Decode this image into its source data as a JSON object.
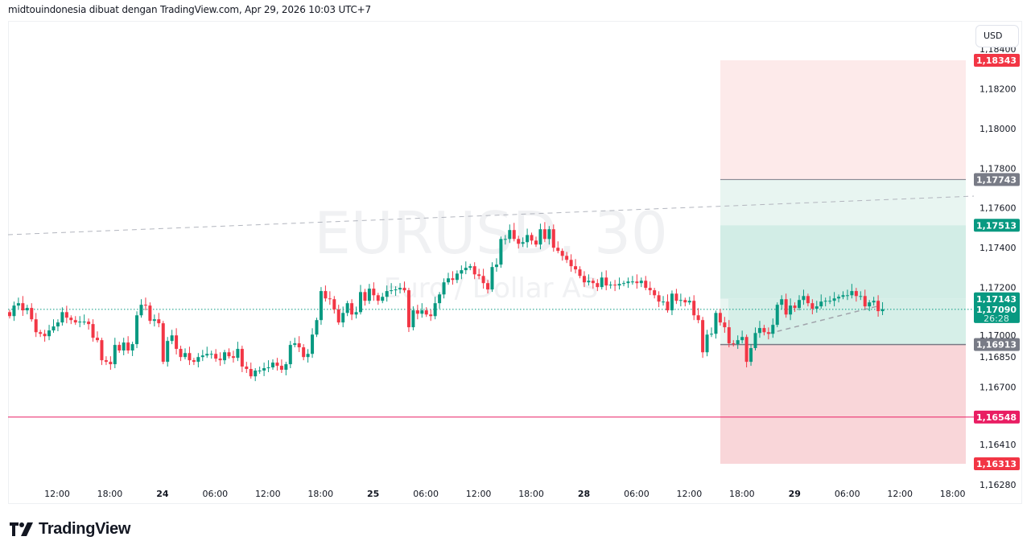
{
  "header": {
    "text": "midtouindonesia dibuat dengan TradingView.com, Apr 29, 2026 10:03 UTC+7"
  },
  "watermark": {
    "symbol": "EURUSD, 30",
    "description": "Euro / Dollar AS"
  },
  "currency_button": "USD",
  "footer": {
    "logo_text": "TradingView"
  },
  "colors": {
    "up": "#089981",
    "down": "#f23645",
    "stop_badge": "#f23645",
    "neutral_badge": "#787b86",
    "horizontal_line": "#e91e63",
    "trendline": "#b2b5be"
  },
  "chart_data": {
    "type": "candlestick",
    "symbol": "EURUSD",
    "interval": "30",
    "x_tick_labels": [
      "12:00",
      "18:00",
      "24",
      "06:00",
      "12:00",
      "18:00",
      "25",
      "06:00",
      "12:00",
      "18:00",
      "28",
      "06:00",
      "12:00",
      "18:00",
      "29",
      "06:00",
      "12:00",
      "18:00"
    ],
    "y_tick_labels": [
      "1,18400",
      "1,18200",
      "1,18000",
      "1,17800",
      "1,17600",
      "1,17400",
      "1,17200",
      "1,17000",
      "1,16850",
      "1,16700",
      "1,16410",
      "1,16280"
    ],
    "y_ticks": [
      1.184,
      1.182,
      1.18,
      1.178,
      1.176,
      1.174,
      1.172,
      1.17,
      1.1685,
      1.167,
      1.1641,
      1.1628
    ],
    "ylim": [
      1.1626,
      1.1846
    ],
    "grid": false,
    "closes": [
      1.17056,
      1.17109,
      1.17121,
      1.17085,
      1.17097,
      1.1704,
      1.16975,
      1.16967,
      1.16955,
      1.16984,
      1.17004,
      1.17024,
      1.17076,
      1.17048,
      1.17036,
      1.17024,
      1.17028,
      1.17028,
      1.17016,
      1.16947,
      1.16935,
      1.16834,
      1.16826,
      1.16814,
      1.16911,
      1.16883,
      1.16923,
      1.16883,
      1.16915,
      1.1706,
      1.17113,
      1.17109,
      1.17032,
      1.1704,
      1.1702,
      1.16826,
      1.16931,
      1.16959,
      1.16891,
      1.1685,
      1.1687,
      1.16834,
      1.16826,
      1.1685,
      1.16858,
      1.16866,
      1.16866,
      1.16842,
      1.16834,
      1.16874,
      1.16854,
      1.16846,
      1.16891,
      1.16802,
      1.1679,
      1.16753,
      1.16782,
      1.16782,
      1.16794,
      1.16798,
      1.16822,
      1.16806,
      1.16786,
      1.16814,
      1.16911,
      1.16919,
      1.16899,
      1.1685,
      1.16866,
      1.16963,
      1.17036,
      1.17182,
      1.17145,
      1.17141,
      1.17089,
      1.17024,
      1.17072,
      1.17121,
      1.17064,
      1.17076,
      1.17177,
      1.17133,
      1.17194,
      1.17161,
      1.17133,
      1.17153,
      1.17182,
      1.17186,
      1.1719,
      1.17198,
      1.17186,
      1.17,
      1.17085,
      1.17068,
      1.17085,
      1.17064,
      1.17056,
      1.17121,
      1.17165,
      1.17226,
      1.17246,
      1.17238,
      1.1727,
      1.17287,
      1.17299,
      1.17307,
      1.17266,
      1.17258,
      1.17222,
      1.1719,
      1.17303,
      1.17315,
      1.17444,
      1.17444,
      1.17489,
      1.17444,
      1.1742,
      1.17428,
      1.17464,
      1.17436,
      1.17416,
      1.17493,
      1.17444,
      1.17493,
      1.174,
      1.17384,
      1.17359,
      1.17339,
      1.17307,
      1.17291,
      1.17258,
      1.17226,
      1.17234,
      1.17222,
      1.17202,
      1.1725,
      1.1721,
      1.17214,
      1.1721,
      1.17218,
      1.17222,
      1.1723,
      1.1723,
      1.17222,
      1.17234,
      1.17198,
      1.17186,
      1.17161,
      1.17129,
      1.17129,
      1.17085,
      1.17169,
      1.17133,
      1.17137,
      1.17125,
      1.17133,
      1.1706,
      1.17036,
      1.16874,
      1.16963,
      1.16967,
      1.17072,
      1.17024,
      1.17,
      1.16919,
      1.16915,
      1.16935,
      1.16951,
      1.16826,
      1.16895,
      1.16971,
      1.16996,
      1.16975,
      1.16967,
      1.17012,
      1.17113,
      1.17141,
      1.17064,
      1.17109,
      1.17097,
      1.17137,
      1.17157,
      1.17121,
      1.17093,
      1.17105,
      1.17129,
      1.17133,
      1.17133,
      1.17145,
      1.17153,
      1.17161,
      1.17161,
      1.17182,
      1.17157,
      1.17157,
      1.17105,
      1.17125,
      1.17133,
      1.17081,
      1.1709
    ],
    "horizontal_line": 1.16548,
    "current_price": 1.1709,
    "countdown": "26:28",
    "position_levels": {
      "upper_stop": 1.18343,
      "target": 1.17743,
      "target_2": 1.17513,
      "entry_2": 1.17143,
      "entry": 1.16913,
      "lower_stop": 1.16313
    },
    "price_badges": [
      {
        "label": "1,18343",
        "value": 1.18343,
        "kind": "down"
      },
      {
        "label": "1,17743",
        "value": 1.17743,
        "kind": "neutral"
      },
      {
        "label": "1,17513",
        "value": 1.17513,
        "kind": "up"
      },
      {
        "label": "1,17143",
        "value": 1.17143,
        "kind": "up"
      },
      {
        "label": "1,16913",
        "value": 1.16913,
        "kind": "neutral"
      },
      {
        "label": "1,16548",
        "value": 1.16548,
        "kind": "line"
      },
      {
        "label": "1,16313",
        "value": 1.16313,
        "kind": "down"
      }
    ],
    "current_badge": {
      "label": "1,17090"
    }
  }
}
